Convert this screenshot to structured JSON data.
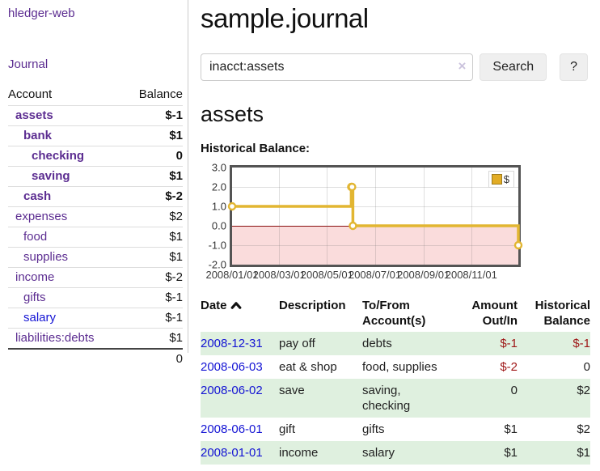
{
  "app": {
    "brand": "hledger-web",
    "nav_journal": "Journal"
  },
  "colors": {
    "link_purple": "#5c2d91",
    "link_blue": "#1414d4",
    "negative_strong": "#9e1616",
    "negative_soft": "#c47e7e",
    "row_stripe_green": "#dff0df",
    "chart_line_gold": "#e2b632",
    "chart_negative_fill": "#fadcdc",
    "chart_zero_line": "#8a1010"
  },
  "sidebar": {
    "accounts_table": {
      "headers": {
        "account": "Account",
        "balance": "Balance"
      },
      "rows": [
        {
          "name": "assets",
          "balance": "$-1",
          "depth": 1,
          "bold": true,
          "balance_class": "neg",
          "link_class": "purple-link"
        },
        {
          "name": "bank",
          "balance": "$1",
          "depth": 2,
          "bold": true,
          "balance_class": "",
          "link_class": "purple-link"
        },
        {
          "name": "checking",
          "balance": "0",
          "depth": 3,
          "bold": true,
          "balance_class": "",
          "link_class": "purple-link"
        },
        {
          "name": "saving",
          "balance": "$1",
          "depth": 3,
          "bold": true,
          "balance_class": "",
          "link_class": "purple-link"
        },
        {
          "name": "cash",
          "balance": "$-2",
          "depth": 2,
          "bold": true,
          "balance_class": "neg",
          "link_class": "purple-link"
        },
        {
          "name": "expenses",
          "balance": "$2",
          "depth": 1,
          "bold": false,
          "balance_class": "",
          "link_class": "purple-link"
        },
        {
          "name": "food",
          "balance": "$1",
          "depth": 2,
          "bold": false,
          "balance_class": "",
          "link_class": "purple-link"
        },
        {
          "name": "supplies",
          "balance": "$1",
          "depth": 2,
          "bold": false,
          "balance_class": "",
          "link_class": "purple-link"
        },
        {
          "name": "income",
          "balance": "$-2",
          "depth": 1,
          "bold": false,
          "balance_class": "neg-soft",
          "link_class": "purple-link"
        },
        {
          "name": "gifts",
          "balance": "$-1",
          "depth": 2,
          "bold": false,
          "balance_class": "neg-soft",
          "link_class": "purple-link"
        },
        {
          "name": "salary",
          "balance": "$-1",
          "depth": 2,
          "bold": false,
          "balance_class": "neg-soft",
          "link_class": "blue-link"
        },
        {
          "name": "liabilities:debts",
          "balance": "$1",
          "depth": 1,
          "bold": false,
          "balance_class": "",
          "link_class": "purple-link"
        }
      ],
      "total": "0"
    }
  },
  "header": {
    "title": "sample.journal"
  },
  "search": {
    "value": "inacct:assets",
    "clear_icon": "×",
    "button": "Search",
    "help_button": "?"
  },
  "account_page": {
    "heading": "assets",
    "chart_label": "Historical Balance:"
  },
  "chart_data": {
    "type": "line",
    "title": "Historical Balance:",
    "step": true,
    "series": [
      {
        "name": "$",
        "color": "#e2b632",
        "points": [
          [
            "2008-01-01",
            1
          ],
          [
            "2008-06-01",
            2
          ],
          [
            "2008-06-02",
            2
          ],
          [
            "2008-06-03",
            0
          ],
          [
            "2008-12-31",
            -1
          ]
        ]
      }
    ],
    "xlim": [
      "2008-01-01",
      "2008-12-31"
    ],
    "ylim": [
      -2,
      3
    ],
    "yticks": [
      {
        "v": 3,
        "label": "3.0"
      },
      {
        "v": 2,
        "label": "2.0"
      },
      {
        "v": 1,
        "label": "1.0"
      },
      {
        "v": 0,
        "label": "0.0"
      },
      {
        "v": -1,
        "label": "-1.0"
      },
      {
        "v": -2,
        "label": "-2.0"
      }
    ],
    "xticks": [
      {
        "date": "2008-01-01",
        "label": "2008/01/01"
      },
      {
        "date": "2008-03-01",
        "label": "2008/03/01"
      },
      {
        "date": "2008-05-01",
        "label": "2008/05/01"
      },
      {
        "date": "2008-07-01",
        "label": "2008/07/01"
      },
      {
        "date": "2008-09-01",
        "label": "2008/09/01"
      },
      {
        "date": "2008-11-01",
        "label": "2008/11/01"
      }
    ],
    "grid": true,
    "legend_position": "top-right",
    "negative_region_shaded": true
  },
  "register_table": {
    "headers": {
      "date": "Date",
      "description": "Description",
      "accounts": "To/From Account(s)",
      "amount": "Amount Out/In",
      "balance": "Historical Balance"
    },
    "sort_icon": "chevron-up",
    "rows": [
      {
        "date": "2008-12-31",
        "description": "pay off",
        "accounts": "debts",
        "amount": "$-1",
        "amount_class": "neg",
        "balance": "$-1",
        "balance_class": "neg"
      },
      {
        "date": "2008-06-03",
        "description": "eat & shop",
        "accounts": "food, supplies",
        "amount": "$-2",
        "amount_class": "neg",
        "balance": "0",
        "balance_class": ""
      },
      {
        "date": "2008-06-02",
        "description": "save",
        "accounts": "saving, checking",
        "amount": "0",
        "amount_class": "",
        "balance": "$2",
        "balance_class": ""
      },
      {
        "date": "2008-06-01",
        "description": "gift",
        "accounts": "gifts",
        "amount": "$1",
        "amount_class": "",
        "balance": "$2",
        "balance_class": ""
      },
      {
        "date": "2008-01-01",
        "description": "income",
        "accounts": "salary",
        "amount": "$1",
        "amount_class": "",
        "balance": "$1",
        "balance_class": ""
      }
    ]
  }
}
